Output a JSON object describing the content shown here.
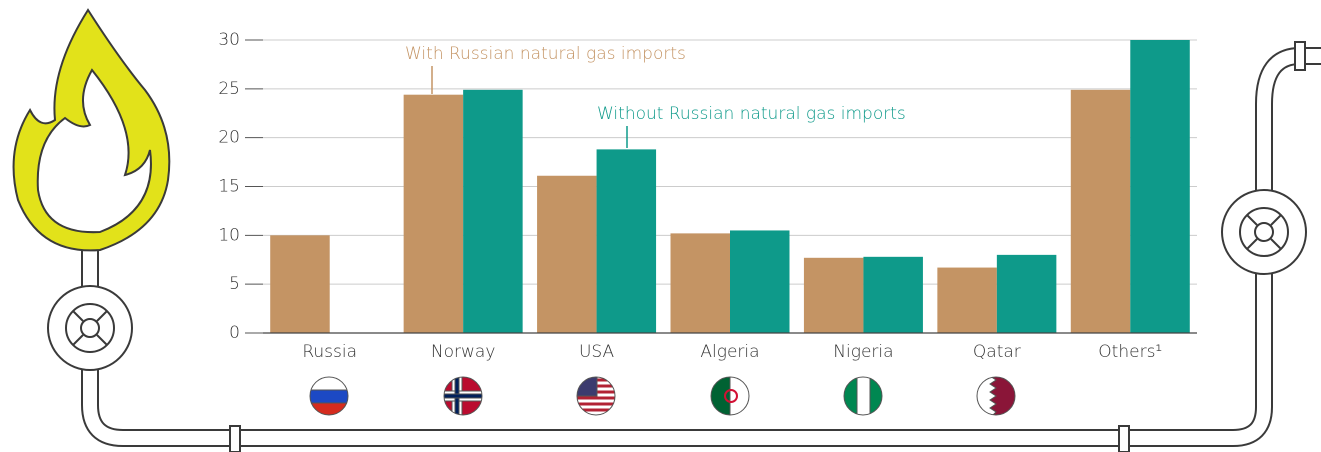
{
  "chart_data": {
    "type": "bar",
    "categories": [
      "Russia",
      "Norway",
      "USA",
      "Algeria",
      "Nigeria",
      "Qatar",
      "Others¹"
    ],
    "series": [
      {
        "name": "With Russian natural gas imports",
        "color": "#c49464",
        "values": [
          10,
          24.4,
          16.1,
          10.2,
          7.7,
          6.7,
          24.9
        ]
      },
      {
        "name": "Without Russian natural gas imports",
        "color": "#0e9a8a",
        "values": [
          null,
          24.9,
          18.8,
          10.5,
          7.8,
          8.0,
          30
        ]
      }
    ],
    "ylim": [
      0,
      30
    ],
    "yticks": [
      0,
      5,
      10,
      15,
      20,
      25,
      30
    ],
    "grid": true
  }
}
